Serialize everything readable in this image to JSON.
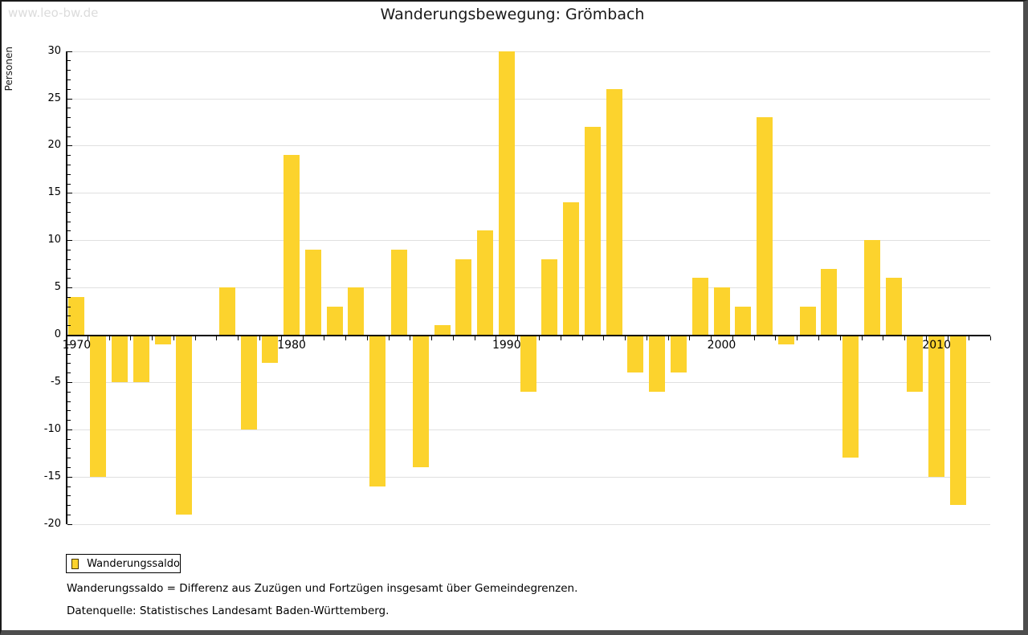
{
  "watermark": "www.leo-bw.de",
  "title": "Wanderungsbewegung: Grömbach",
  "y_axis": {
    "label": "Personen",
    "min": -20,
    "max": 30,
    "major_step": 5,
    "minor_step": 1,
    "tick_labels": [
      "30",
      "25",
      "20",
      "15",
      "10",
      "5",
      "0",
      "-5",
      "-10",
      "-15",
      "-20"
    ]
  },
  "x_axis": {
    "decade_labels": [
      "1970",
      "1980",
      "1990",
      "2000",
      "2010"
    ]
  },
  "legend": {
    "label": "Wanderungssaldo"
  },
  "notes": {
    "definition": "Wanderungssaldo = Differenz aus Zuzügen und Fortzügen insgesamt über Gemeindegrenzen.",
    "source": "Datenquelle: Statistisches Landesamt Baden-Württemberg."
  },
  "colors": {
    "bar": "#fcd32d",
    "grid": "#e0e0e0",
    "axis": "#000000",
    "watermark": "#dcdcdc",
    "frame_shadow": "#4d4d4d"
  },
  "chart_data": {
    "type": "bar",
    "title": "Wanderungsbewegung: Grömbach",
    "xlabel": "",
    "ylabel": "Personen",
    "ylim": [
      -20,
      30
    ],
    "grid": true,
    "legend_position": "bottom-left",
    "series_name": "Wanderungssaldo",
    "x": [
      1970,
      1971,
      1972,
      1973,
      1974,
      1975,
      1976,
      1977,
      1978,
      1979,
      1980,
      1981,
      1982,
      1983,
      1984,
      1985,
      1986,
      1987,
      1988,
      1989,
      1990,
      1991,
      1992,
      1993,
      1994,
      1995,
      1996,
      1997,
      1998,
      1999,
      2000,
      2001,
      2002,
      2003,
      2004,
      2005,
      2006,
      2007,
      2008,
      2009,
      2010,
      2011
    ],
    "values": [
      4,
      -15,
      -5,
      -5,
      -1,
      -19,
      0,
      5,
      -10,
      -3,
      19,
      9,
      3,
      5,
      -16,
      9,
      -14,
      1,
      8,
      11,
      30,
      -6,
      8,
      14,
      22,
      26,
      -4,
      -6,
      -4,
      6,
      5,
      3,
      23,
      -1,
      3,
      7,
      -13,
      10,
      6,
      -6,
      -15,
      -18
    ]
  }
}
